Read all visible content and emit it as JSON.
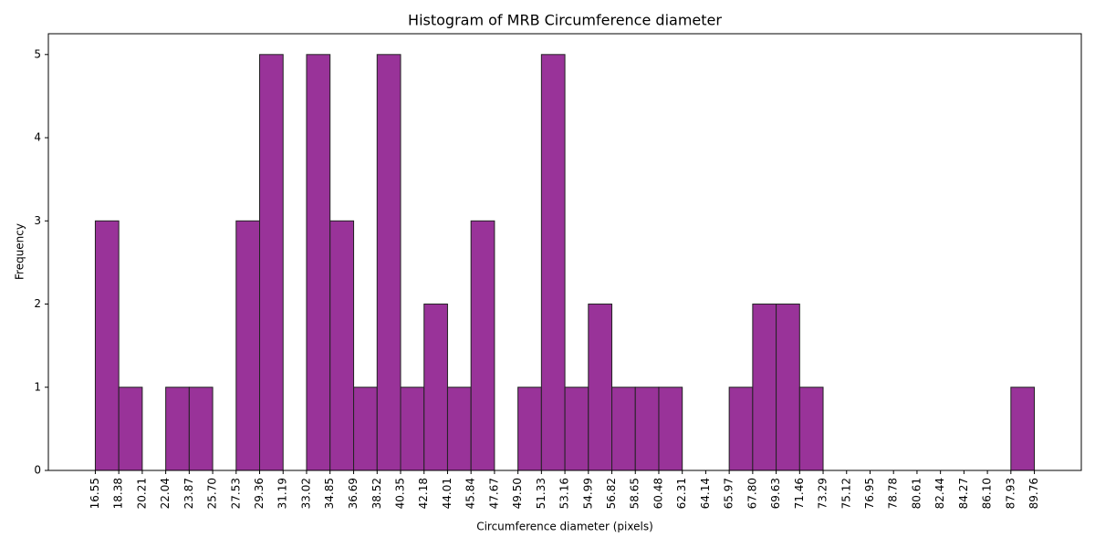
{
  "chart_data": {
    "type": "histogram",
    "title": "Histogram of MRB Circumference diameter",
    "x_label": "Circumference diameter (pixels)",
    "y_label": "Frequency",
    "bins": [
      16.55,
      18.38,
      20.21,
      22.04,
      23.87,
      25.7,
      27.53,
      29.36,
      31.19,
      33.02,
      34.85,
      36.69,
      38.52,
      40.35,
      42.18,
      44.01,
      45.84,
      47.67,
      49.5,
      51.33,
      53.16,
      54.99,
      56.82,
      58.65,
      60.48,
      62.31,
      64.14,
      65.97,
      67.8,
      69.63,
      71.46,
      73.29,
      75.12,
      76.95,
      78.78,
      80.61,
      82.44,
      84.27,
      86.1,
      87.93,
      89.76
    ],
    "values": [
      3,
      1,
      0,
      1,
      1,
      0,
      3,
      5,
      0,
      5,
      3,
      1,
      5,
      1,
      2,
      1,
      3,
      0,
      1,
      5,
      1,
      2,
      1,
      1,
      1,
      0,
      0,
      1,
      2,
      2,
      1,
      0,
      0,
      0,
      0,
      0,
      0,
      0,
      0,
      1
    ],
    "color": "#993399",
    "edge_color": "#222222",
    "xlim": [
      12.89,
      93.42
    ],
    "ylim": [
      0,
      5.25
    ],
    "xticks": [
      16.55,
      18.38,
      20.21,
      22.04,
      23.87,
      {
        "value": 25.7,
        "label": "25.70"
      },
      27.53,
      29.36,
      31.19,
      33.02,
      34.85,
      36.69,
      38.52,
      40.35,
      42.18,
      44.01,
      45.84,
      47.67,
      {
        "value": 49.5,
        "label": "49.50"
      },
      51.33,
      53.16,
      54.99,
      56.82,
      58.65,
      60.48,
      62.31,
      64.14,
      65.97,
      {
        "value": 67.8,
        "label": "67.80"
      },
      69.63,
      71.46,
      73.29,
      75.12,
      76.95,
      78.78,
      80.61,
      82.44,
      84.27,
      {
        "value": 86.1,
        "label": "86.10"
      },
      87.93,
      89.76
    ],
    "yticks": [
      0,
      1,
      2,
      3,
      4,
      5
    ]
  }
}
